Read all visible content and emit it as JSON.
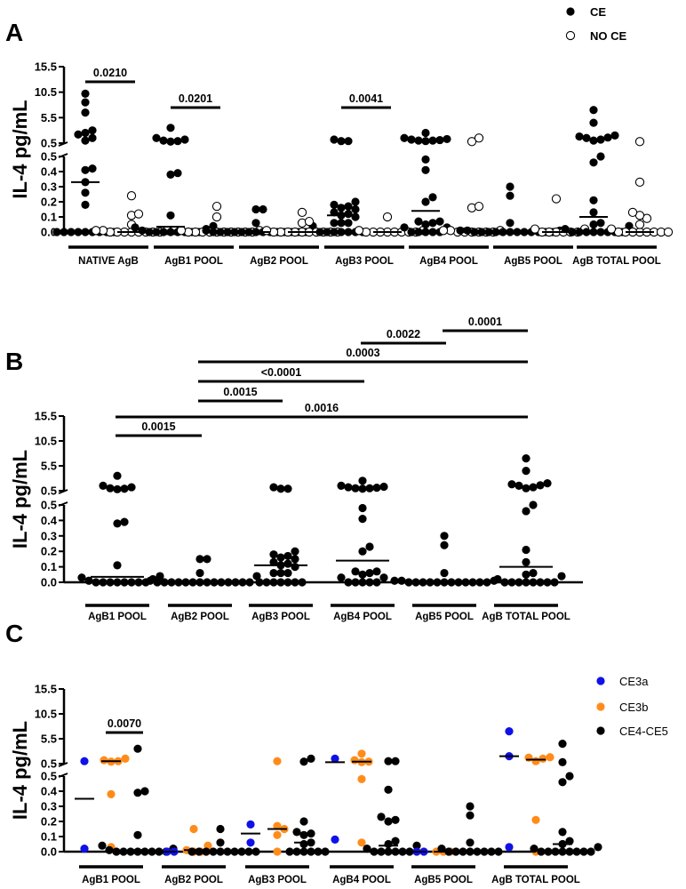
{
  "chart_data": [
    {
      "panel": "A",
      "type": "scatter",
      "ylabel": "IL-4 pg/mL",
      "y_ticks_lower": [
        "0.0",
        "0.1",
        "0.2",
        "0.3",
        "0.4",
        "0.5"
      ],
      "y_ticks_upper": [
        "0.5",
        "5.5",
        "10.5",
        "15.5"
      ],
      "ylim_lower": [
        0,
        0.5
      ],
      "ylim_upper": [
        0.5,
        15.5
      ],
      "legend": {
        "placement": "top-right",
        "entries": [
          {
            "name": "CE",
            "fill": "filled"
          },
          {
            "name": "NO CE",
            "fill": "open"
          }
        ]
      },
      "categories": [
        "NATIVE AgB",
        "AgB1 POOL",
        "AgB2 POOL",
        "AgB3 POOL",
        "AgB4 POOL",
        "AgB5 POOL",
        "AgB TOTAL POOL"
      ],
      "groups": [
        {
          "CE": [
            10.2,
            8.5,
            6.5,
            3.0,
            2.5,
            2.2,
            1.5,
            1.0,
            0.42,
            0.41,
            0.33,
            0.26,
            0.18,
            0,
            0,
            0,
            0,
            0,
            0,
            0,
            0,
            0
          ],
          "CE_median": 0.33,
          "NO_CE": [
            0.24,
            0.12,
            0.11,
            0.05,
            0.01,
            0.01,
            0.01,
            0.01,
            0,
            0,
            0,
            0,
            0,
            0,
            0,
            0
          ],
          "NO_CE_median": 0,
          "p": "0.0210"
        },
        {
          "CE": [
            3.5,
            1.5,
            1.2,
            1.0,
            0.9,
            0.8,
            0.39,
            0.38,
            0.11,
            0.04,
            0.03,
            0.02,
            0.01,
            0,
            0,
            0,
            0,
            0,
            0,
            0,
            0
          ],
          "CE_median": 0.035,
          "NO_CE": [
            0.17,
            0.1,
            0.01,
            0.01,
            0,
            0,
            0,
            0,
            0,
            0,
            0,
            0,
            0,
            0
          ],
          "NO_CE_median": 0,
          "p": "0.0201"
        },
        {
          "CE": [
            0.15,
            0.15,
            0.06,
            0.04,
            0.01,
            0,
            0,
            0,
            0,
            0,
            0,
            0,
            0,
            0,
            0,
            0,
            0,
            0,
            0
          ],
          "CE_median": 0,
          "NO_CE": [
            0.13,
            0.07,
            0.06,
            0.01,
            0,
            0,
            0,
            0,
            0,
            0,
            0,
            0,
            0,
            0
          ],
          "NO_CE_median": 0,
          "p": null
        },
        {
          "CE": [
            1.2,
            0.9,
            0.9,
            0.2,
            0.18,
            0.17,
            0.16,
            0.15,
            0.13,
            0.12,
            0.11,
            0.1,
            0.06,
            0.06,
            0.06,
            0,
            0,
            0,
            0,
            0,
            0,
            0
          ],
          "CE_median": 0.11,
          "NO_CE": [
            0.1,
            0.01,
            0.01,
            0,
            0,
            0,
            0,
            0,
            0,
            0,
            0
          ],
          "NO_CE_median": 0,
          "p": "0.0041"
        },
        {
          "CE": [
            2.5,
            1.5,
            1.3,
            1.2,
            1.1,
            1.0,
            1.0,
            0.9,
            0.48,
            0.41,
            0.23,
            0.2,
            0.07,
            0.07,
            0.06,
            0.05,
            0.03,
            0.03,
            0,
            0,
            0,
            0,
            0
          ],
          "CE_median": 0.14,
          "NO_CE": [
            1.5,
            0.8,
            0.17,
            0.16,
            0.01,
            0.01,
            0.01,
            0,
            0,
            0,
            0,
            0,
            0
          ],
          "NO_CE_median": 0,
          "p": null
        },
        {
          "CE": [
            0.3,
            0.24,
            0.06,
            0.01,
            0.01,
            0.01,
            0,
            0,
            0,
            0,
            0,
            0,
            0,
            0,
            0,
            0,
            0,
            0
          ],
          "CE_median": 0,
          "NO_CE": [
            0.22,
            0.02,
            0.02,
            0,
            0,
            0,
            0,
            0,
            0
          ],
          "NO_CE_median": 0,
          "p": null
        },
        {
          "CE": [
            7.0,
            4.5,
            2.0,
            1.8,
            1.6,
            1.5,
            1.2,
            1.0,
            0.5,
            0.46,
            0.21,
            0.13,
            0.06,
            0.05,
            0.04,
            0.02,
            0,
            0,
            0,
            0,
            0,
            0,
            0,
            0
          ],
          "CE_median": 0.1,
          "NO_CE": [
            0.8,
            0.33,
            0.13,
            0.11,
            0.09,
            0.05,
            0.02,
            0,
            0,
            0,
            0,
            0,
            0,
            0,
            0
          ],
          "NO_CE_median": 0,
          "p": null
        }
      ]
    },
    {
      "panel": "B",
      "type": "scatter",
      "ylabel": "IL-4 pg/mL",
      "y_ticks_lower": [
        "0.0",
        "0.1",
        "0.2",
        "0.3",
        "0.4",
        "0.5"
      ],
      "y_ticks_upper": [
        "0.5",
        "5.5",
        "10.5",
        "15.5"
      ],
      "ylim_lower": [
        0,
        0.5
      ],
      "ylim_upper": [
        0.5,
        15.5
      ],
      "categories": [
        "AgB1 POOL",
        "AgB2 POOL",
        "AgB3 POOL",
        "AgB4 POOL",
        "AgB5 POOL",
        "AgB TOTAL POOL"
      ],
      "groups": [
        {
          "values": [
            3.5,
            1.5,
            1.2,
            1.0,
            0.9,
            0.8,
            0.39,
            0.38,
            0.11,
            0.04,
            0.03,
            0.02,
            0.01,
            0,
            0,
            0,
            0,
            0,
            0,
            0,
            0
          ],
          "median": 0.035
        },
        {
          "values": [
            0.15,
            0.15,
            0.06,
            0.04,
            0.01,
            0,
            0,
            0,
            0,
            0,
            0,
            0,
            0,
            0,
            0,
            0,
            0,
            0,
            0
          ],
          "median": 0
        },
        {
          "values": [
            1.2,
            0.9,
            0.9,
            0.2,
            0.18,
            0.17,
            0.16,
            0.15,
            0.13,
            0.12,
            0.11,
            0.1,
            0.06,
            0.06,
            0.06,
            0,
            0,
            0,
            0,
            0,
            0,
            0
          ],
          "median": 0.11
        },
        {
          "values": [
            2.5,
            1.5,
            1.3,
            1.2,
            1.1,
            1.0,
            1.0,
            0.9,
            0.48,
            0.41,
            0.23,
            0.2,
            0.07,
            0.07,
            0.06,
            0.05,
            0.03,
            0.03,
            0,
            0,
            0,
            0,
            0
          ],
          "median": 0.14
        },
        {
          "values": [
            0.3,
            0.24,
            0.06,
            0.01,
            0.01,
            0.01,
            0,
            0,
            0,
            0,
            0,
            0,
            0,
            0,
            0,
            0,
            0,
            0
          ],
          "median": 0
        },
        {
          "values": [
            7.0,
            4.5,
            2.0,
            1.8,
            1.6,
            1.5,
            1.2,
            1.0,
            0.5,
            0.46,
            0.21,
            0.13,
            0.06,
            0.05,
            0.04,
            0.02,
            0,
            0,
            0,
            0,
            0,
            0,
            0,
            0
          ],
          "median": 0.1
        }
      ],
      "comparisons": [
        {
          "from": 4,
          "to": 5,
          "p": "0.0001"
        },
        {
          "from": 3,
          "to": 4,
          "p": "0.0022"
        },
        {
          "from": 1,
          "to": 5,
          "p": "0.0003"
        },
        {
          "from": 1,
          "to": 3,
          "p": "<0.0001"
        },
        {
          "from": 1,
          "to": 2,
          "p": "0.0015"
        },
        {
          "from": 0,
          "to": 5,
          "p": "0.0016"
        },
        {
          "from": 0,
          "to": 1,
          "p": "0.0015"
        }
      ]
    },
    {
      "panel": "C",
      "type": "scatter",
      "ylabel": "IL-4 pg/mL",
      "y_ticks_lower": [
        "0.0",
        "0.1",
        "0.2",
        "0.3",
        "0.4",
        "0.5"
      ],
      "y_ticks_upper": [
        "0.5",
        "5.5",
        "10.5",
        "15.5"
      ],
      "ylim_lower": [
        0,
        0.5
      ],
      "ylim_upper": [
        0.5,
        15.5
      ],
      "legend": {
        "placement": "top-right",
        "entries": [
          {
            "name": "CE3a",
            "color": "#1010e8"
          },
          {
            "name": "CE3b",
            "color": "#ff8c1a"
          },
          {
            "name": "CE4-CE5",
            "color": "#000000"
          }
        ]
      },
      "categories": [
        "AgB1 POOL",
        "AgB2 POOL",
        "AgB3 POOL",
        "AgB4 POOL",
        "AgB5 POOL",
        "AgB TOTAL POOL"
      ],
      "groups": [
        {
          "series": [
            {
              "values": [
                1.0,
                0.02
              ],
              "median": 0.35
            },
            {
              "values": [
                1.5,
                1.2,
                1.0,
                0.9,
                0.38,
                0.03
              ],
              "median": 1.0
            },
            {
              "values": [
                3.5,
                0.4,
                0.39,
                0.11,
                0.04,
                0.02,
                0.01,
                0,
                0,
                0,
                0,
                0,
                0,
                0,
                0
              ],
              "median": 0.01
            }
          ],
          "comparison": {
            "from": 1,
            "to": 2,
            "p": "0.0070"
          }
        },
        {
          "series": [
            {
              "values": [
                0,
                0
              ],
              "median": 0
            },
            {
              "values": [
                0.15,
                0.04,
                0.01,
                0,
                0
              ],
              "median": 0.01
            },
            {
              "values": [
                0.15,
                0.06,
                0,
                0,
                0,
                0,
                0,
                0,
                0,
                0,
                0,
                0
              ],
              "median": 0
            }
          ]
        },
        {
          "series": [
            {
              "values": [
                0.18,
                0.06
              ],
              "median": 0.12
            },
            {
              "values": [
                1.0,
                0.17,
                0.15,
                0.11,
                0
              ],
              "median": 0.15
            },
            {
              "values": [
                1.5,
                0.9,
                0.2,
                0.13,
                0.12,
                0.11,
                0.06,
                0.05,
                0,
                0,
                0,
                0,
                0,
                0
              ],
              "median": 0.06
            }
          ]
        },
        {
          "series": [
            {
              "values": [
                1.5,
                0.08
              ],
              "median": 0.8
            },
            {
              "values": [
                2.5,
                1.2,
                0.9,
                0.8,
                0.48,
                0.06
              ],
              "median": 0.9
            },
            {
              "values": [
                1.0,
                1.0,
                0.41,
                0.23,
                0.21,
                0.2,
                0.07,
                0.05,
                0.04,
                0.02,
                0,
                0,
                0,
                0,
                0,
                0
              ],
              "median": 0.04
            }
          ]
        },
        {
          "series": [
            {
              "values": [
                0,
                0
              ],
              "median": 0
            },
            {
              "values": [
                0,
                0,
                0
              ],
              "median": 0
            },
            {
              "values": [
                0.3,
                0.24,
                0.06,
                0.02,
                0,
                0,
                0,
                0,
                0,
                0,
                0,
                0
              ],
              "median": 0
            }
          ]
        },
        {
          "series": [
            {
              "values": [
                7.0,
                2.0,
                0.03
              ],
              "median": 2.0
            },
            {
              "values": [
                1.8,
                1.7,
                1.5,
                1.0,
                0.21,
                0
              ],
              "median": 1.3
            },
            {
              "values": [
                4.5,
                0.8,
                0.5,
                0.46,
                0.13,
                0.07,
                0.05,
                0.03,
                0.02,
                0,
                0,
                0,
                0,
                0,
                0,
                0,
                0
              ],
              "median": 0.05
            }
          ]
        }
      ]
    }
  ]
}
